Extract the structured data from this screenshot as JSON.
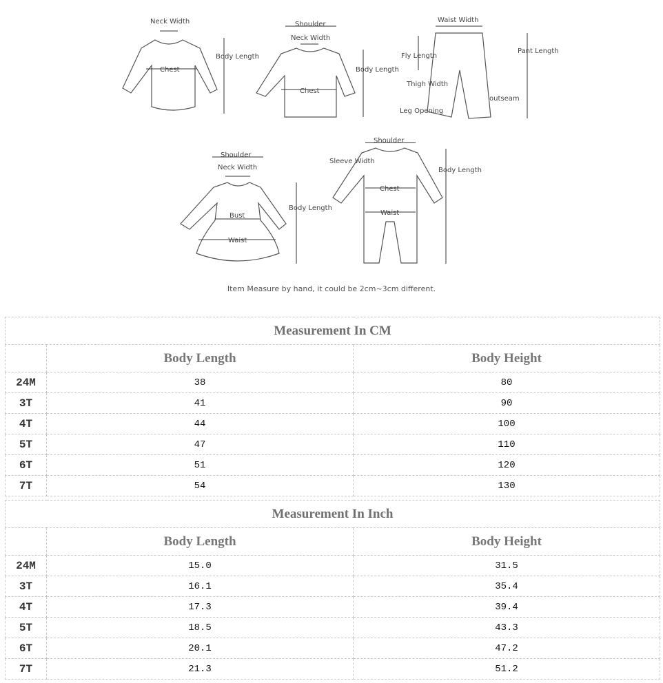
{
  "diagrams": {
    "romper": {
      "neck_width": "Neck Width",
      "body_length": "Body Length",
      "chest": "Chest"
    },
    "shirt": {
      "shoulder": "Shoulder",
      "neck_width": "Neck Width",
      "body_length": "Body Length",
      "chest": "Chest"
    },
    "pants": {
      "waist_width": "Waist Width",
      "fly_length": "Fly Length",
      "pant_length": "Pant Length",
      "thigh_width": "Thigh Width",
      "outseam": "outseam",
      "leg_opening": "Leg Opening"
    },
    "dress": {
      "shoulder": "Shoulder",
      "neck_width": "Neck Width",
      "body_length": "Body Length",
      "bust": "Bust",
      "waist": "Waist"
    },
    "jumpsuit": {
      "shoulder": "Shoulder",
      "sleeve_width": "Sleeve Width",
      "body_length": "Body Length",
      "chest": "Chest",
      "waist": "Waist"
    },
    "note": "Item Measure by hand, it could be 2cm~3cm different."
  },
  "tables": [
    {
      "title": "Measurement In CM",
      "columns": [
        "",
        "Body Length",
        "Body Height"
      ],
      "rows": [
        [
          "24M",
          "38",
          "80"
        ],
        [
          "3T",
          "41",
          "90"
        ],
        [
          "4T",
          "44",
          "100"
        ],
        [
          "5T",
          "47",
          "110"
        ],
        [
          "6T",
          "51",
          "120"
        ],
        [
          "7T",
          "54",
          "130"
        ]
      ]
    },
    {
      "title": "Measurement In Inch",
      "columns": [
        "",
        "Body Length",
        "Body Height"
      ],
      "rows": [
        [
          "24M",
          "15.0",
          "31.5"
        ],
        [
          "3T",
          "16.1",
          "35.4"
        ],
        [
          "4T",
          "17.3",
          "39.4"
        ],
        [
          "5T",
          "18.5",
          "43.3"
        ],
        [
          "6T",
          "20.1",
          "47.2"
        ],
        [
          "7T",
          "21.3",
          "51.2"
        ]
      ]
    }
  ]
}
